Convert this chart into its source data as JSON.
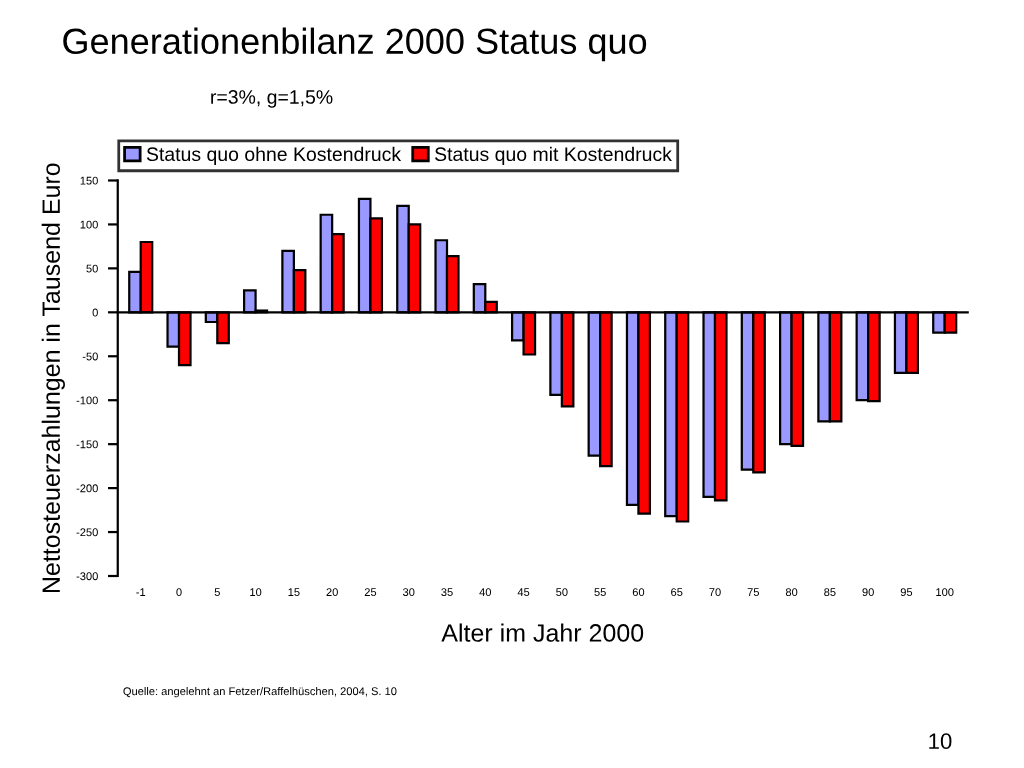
{
  "chart_data": {
    "type": "bar",
    "title": "Generationenbilanz 2000 Status quo",
    "subtitle": "r=3%, g=1,5%",
    "xlabel": "Alter im Jahr 2000",
    "ylabel": "Nettosteuerzahlungen in Tausend Euro",
    "categories": [
      "-1",
      "0",
      "5",
      "10",
      "15",
      "20",
      "25",
      "30",
      "35",
      "40",
      "45",
      "50",
      "55",
      "60",
      "65",
      "70",
      "75",
      "80",
      "85",
      "90",
      "95",
      "100"
    ],
    "series": [
      {
        "name": "Status quo ohne Kostendruck",
        "color": "#9999ff",
        "values": [
          46,
          -39,
          -11,
          25,
          70,
          111,
          129,
          121,
          82,
          32,
          -32,
          -94,
          -163,
          -219,
          -232,
          -210,
          -179,
          -150,
          -124,
          -100,
          -69,
          -23
        ]
      },
      {
        "name": "Status quo mit Kostendruck",
        "color": "#ff0000",
        "values": [
          80,
          -60,
          -35,
          2,
          48,
          89,
          107,
          100,
          64,
          12,
          -48,
          -107,
          -175,
          -229,
          -238,
          -214,
          -182,
          -152,
          -124,
          -101,
          -69,
          -23
        ]
      }
    ],
    "ylim": [
      -300,
      150
    ],
    "yticks": [
      -300,
      -250,
      -200,
      -150,
      -100,
      -50,
      0,
      50,
      100,
      150
    ],
    "legend": "top",
    "annotations": [
      "Quelle: angelehnt an Fetzer/Raffelhüschen, 2004, S. 10",
      "10"
    ]
  }
}
